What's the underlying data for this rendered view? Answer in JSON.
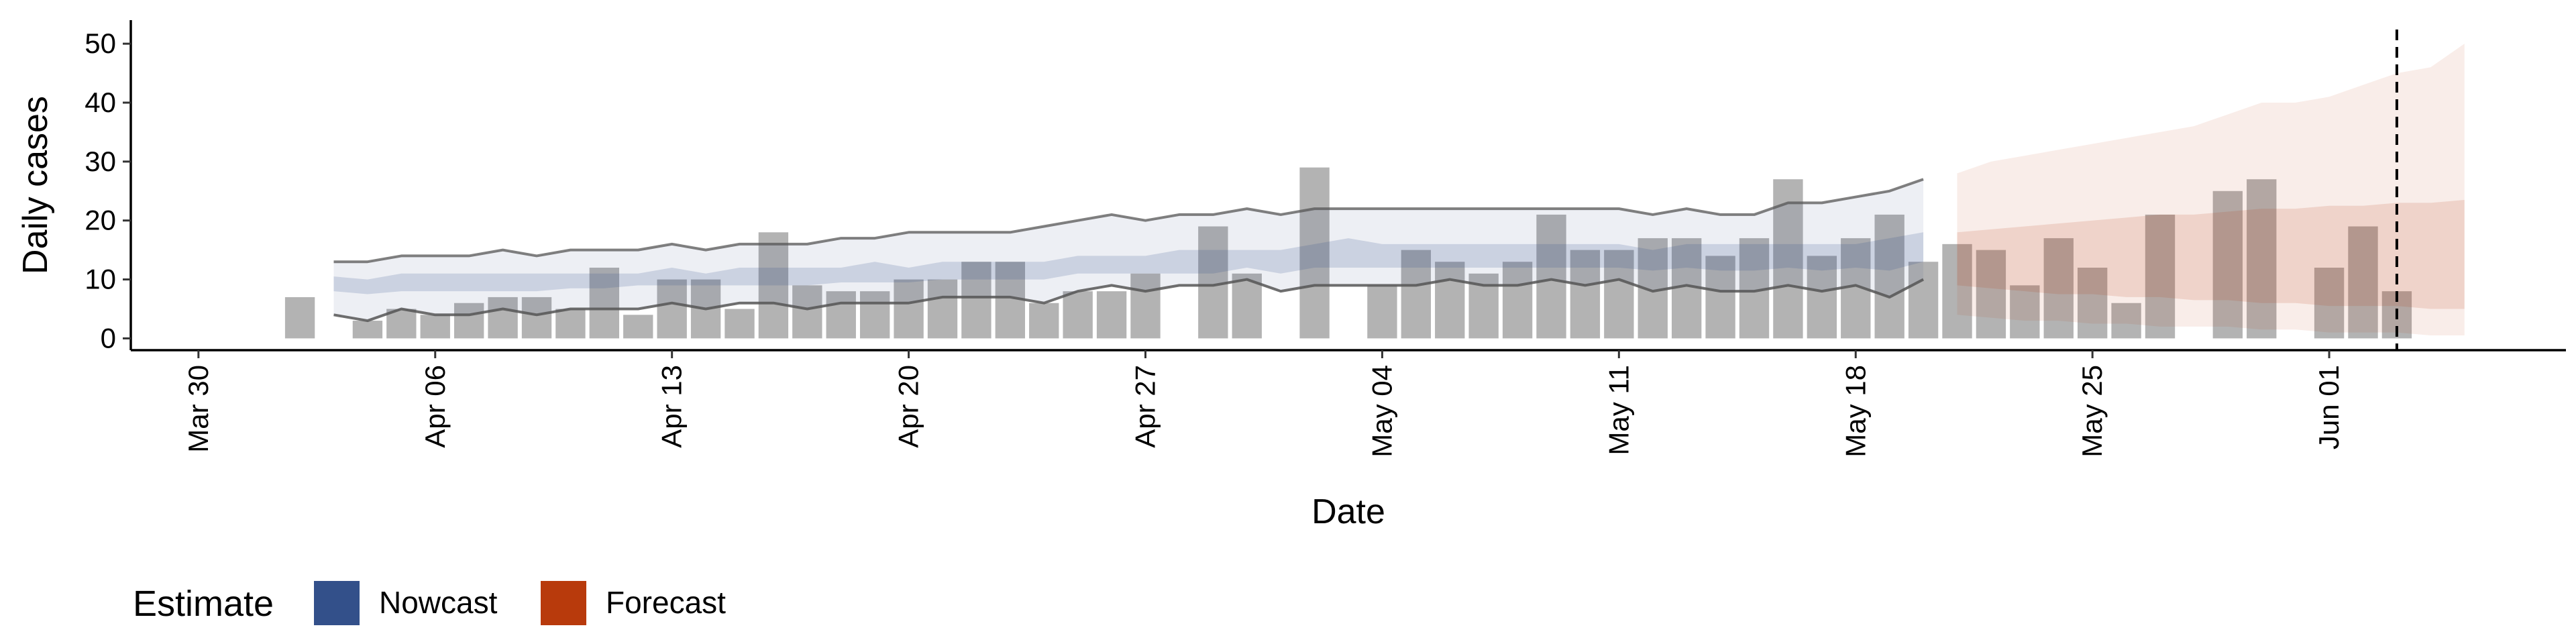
{
  "chart_data": {
    "type": "bar",
    "title": "",
    "xlabel": "Date",
    "ylabel": "Daily cases",
    "ylim": [
      -2,
      54
    ],
    "yticks": [
      0,
      10,
      20,
      30,
      40,
      50
    ],
    "x_range": [
      "2020-03-28",
      "2020-06-08"
    ],
    "x_ticks": [
      {
        "date": "2020-03-30",
        "label": "Mar 30"
      },
      {
        "date": "2020-04-06",
        "label": "Apr 06"
      },
      {
        "date": "2020-04-13",
        "label": "Apr 13"
      },
      {
        "date": "2020-04-20",
        "label": "Apr 20"
      },
      {
        "date": "2020-04-27",
        "label": "Apr 27"
      },
      {
        "date": "2020-05-04",
        "label": "May 04"
      },
      {
        "date": "2020-05-11",
        "label": "May 11"
      },
      {
        "date": "2020-05-18",
        "label": "May 18"
      },
      {
        "date": "2020-05-25",
        "label": "May 25"
      },
      {
        "date": "2020-06-01",
        "label": "Jun 01"
      }
    ],
    "forecast_date": "2020-06-03",
    "colors": {
      "bars": "#b3b3b3",
      "nowcast": "#33508a",
      "forecast": "#b83a0c",
      "bound_line": "#555555",
      "cutoff_line": "#000000"
    },
    "observed": {
      "start": "2020-04-02",
      "values": [
        7,
        0,
        3,
        5,
        4,
        6,
        7,
        7,
        5,
        12,
        4,
        10,
        10,
        5,
        18,
        9,
        8,
        8,
        10,
        10,
        13,
        13,
        6,
        8,
        8,
        11,
        0,
        19,
        11,
        0,
        29,
        0,
        9,
        15,
        13,
        11,
        13,
        21,
        15,
        15,
        17,
        17,
        14,
        17,
        27,
        14,
        17,
        21,
        13,
        16,
        15,
        9,
        17,
        12,
        6,
        21,
        0,
        25,
        27,
        0,
        12,
        19,
        8
      ]
    },
    "nowcast": {
      "start": "2020-04-03",
      "lower_90": [
        4,
        3,
        5,
        4,
        4,
        5,
        4,
        5,
        5,
        5,
        6,
        5,
        6,
        6,
        5,
        6,
        6,
        6,
        7,
        7,
        7,
        6,
        8,
        9,
        8,
        9,
        9,
        10,
        8,
        9,
        9,
        9,
        9,
        10,
        9,
        9,
        10,
        9,
        10,
        8,
        9,
        8,
        8,
        9,
        8,
        9,
        7,
        10
      ],
      "lower_50": [
        8,
        7.5,
        8,
        8,
        8,
        8,
        8,
        8.5,
        8.5,
        9,
        9,
        9,
        9,
        9,
        9,
        9.5,
        9.5,
        9.5,
        10,
        10,
        10,
        10,
        11,
        11,
        11,
        11,
        11,
        12,
        11,
        12,
        12,
        12,
        12,
        12,
        12,
        12,
        12,
        12,
        12,
        11.5,
        12,
        11.5,
        11.5,
        12,
        11.5,
        12,
        11.5,
        13
      ],
      "upper_50": [
        10.5,
        10,
        11,
        11,
        11,
        11,
        11,
        11,
        11,
        11,
        12,
        11,
        12,
        12,
        12,
        12,
        13,
        12,
        13,
        13,
        13,
        13,
        14,
        14,
        14,
        15,
        15,
        15,
        15,
        16,
        17,
        16,
        16,
        16,
        16,
        16,
        16,
        16,
        16,
        15,
        16,
        16,
        16,
        16,
        16,
        16,
        17,
        18
      ],
      "upper_90": [
        13,
        13,
        14,
        14,
        14,
        15,
        14,
        15,
        15,
        15,
        16,
        15,
        16,
        16,
        16,
        17,
        17,
        18,
        18,
        18,
        18,
        19,
        20,
        21,
        20,
        21,
        21,
        22,
        21,
        22,
        22,
        22,
        22,
        22,
        22,
        22,
        22,
        22,
        22,
        21,
        22,
        21,
        21,
        23,
        23,
        24,
        25,
        27
      ]
    },
    "forecast": {
      "start": "2020-05-21",
      "lower_90": [
        4,
        3.5,
        3,
        3,
        2.5,
        2.5,
        2,
        2,
        2,
        1.5,
        1.5,
        1,
        1,
        1,
        0.5,
        0.5
      ],
      "lower_50": [
        9,
        8.5,
        8,
        7.5,
        7.5,
        7,
        7,
        6.5,
        6.5,
        6,
        6,
        5.5,
        5.5,
        5.5,
        5,
        5
      ],
      "upper_50": [
        18,
        18.5,
        19,
        19.5,
        20,
        20.5,
        21,
        21,
        21.5,
        22,
        22,
        22.5,
        22.5,
        23,
        23,
        23.5
      ],
      "upper_90": [
        28,
        30,
        31,
        32,
        33,
        34,
        35,
        36,
        38,
        40,
        40,
        41,
        43,
        45,
        46,
        50
      ]
    }
  },
  "legend": {
    "title": "Estimate",
    "items": [
      {
        "label": "Nowcast",
        "color": "#33508a"
      },
      {
        "label": "Forecast",
        "color": "#b83a0c"
      }
    ]
  }
}
